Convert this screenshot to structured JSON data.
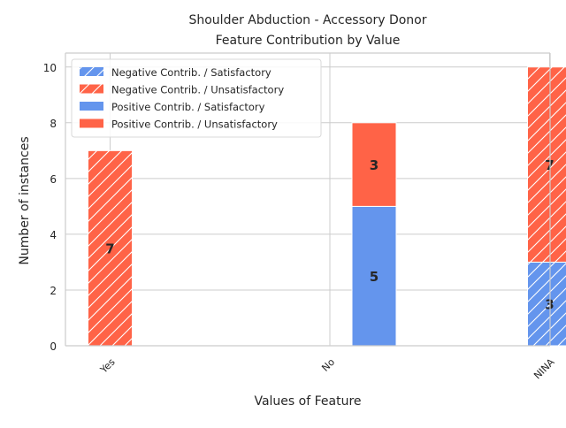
{
  "chart_data": {
    "type": "bar",
    "stacked": true,
    "title": "Shoulder Abduction - Accessory Donor\nFeature Contribution by Value",
    "xlabel": "Values of Feature",
    "ylabel": "Number of instances",
    "ylim": [
      0,
      10.5
    ],
    "yticks": [
      0,
      2,
      4,
      6,
      8,
      10
    ],
    "grid": true,
    "legend_position": "top-left",
    "categories": [
      "Yes",
      "No",
      "NINA"
    ],
    "groups": [
      {
        "key": "negative",
        "series": [
          {
            "name": "Negative Contrib. / Satisfactory",
            "values": [
              0,
              0,
              3
            ],
            "color": "#6495ed",
            "hatched": true
          },
          {
            "name": "Negative Contrib. / Unsatisfactory",
            "values": [
              7,
              0,
              7
            ],
            "color": "#ff6347",
            "hatched": true
          }
        ]
      },
      {
        "key": "positive",
        "series": [
          {
            "name": "Positive Contrib. / Satisfactory",
            "values": [
              0,
              5,
              0
            ],
            "color": "#6495ed",
            "hatched": false
          },
          {
            "name": "Positive Contrib. / Unsatisfactory",
            "values": [
              0,
              3,
              0
            ],
            "color": "#ff6347",
            "hatched": false
          }
        ]
      }
    ]
  }
}
